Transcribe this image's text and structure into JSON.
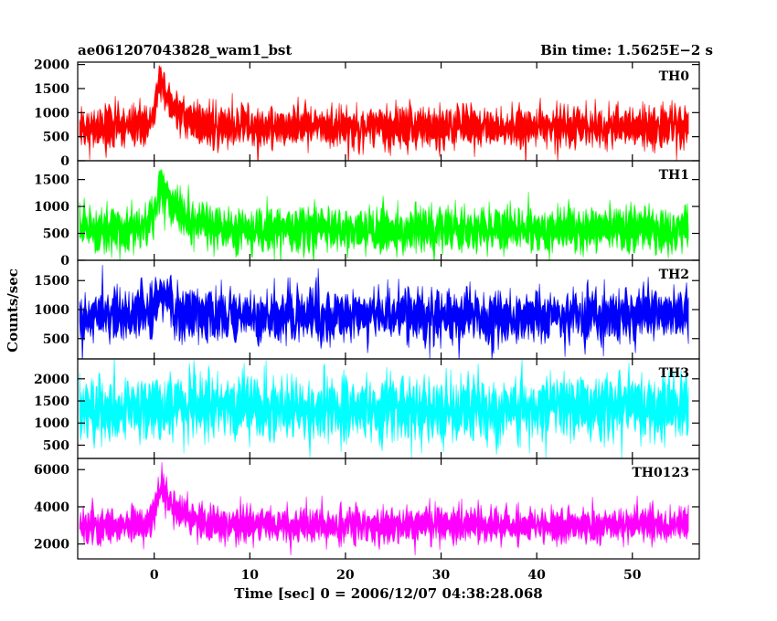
{
  "header": {
    "left_title": "ae061207043828_wam1_bst",
    "right_title": "Bin time: 1.5625E−2 s"
  },
  "chart_data": {
    "type": "line",
    "xlabel": "Time [sec] 0 = 2006/12/07 04:38:28.068",
    "ylabel": "Counts/sec",
    "xlim": [
      -8,
      57
    ],
    "x_ticks": [
      0,
      10,
      20,
      30,
      40,
      50
    ],
    "x_tick_labels": [
      "0",
      "10",
      "20",
      "30",
      "40",
      "50"
    ],
    "x_start": -7.8,
    "x_end": 55.9,
    "bin_time": 0.015625,
    "grid": false,
    "panels": [
      {
        "name": "TH0",
        "color": "#ff0000",
        "ylim": [
          0,
          2050
        ],
        "y_ticks": [
          0,
          500,
          1000,
          1500,
          2000
        ],
        "baseline_mean": 700,
        "noise_sd": 220,
        "burst": {
          "time": 0.8,
          "peak_increase": 900,
          "rise": 0.6,
          "decay": 1.8
        }
      },
      {
        "name": "TH1",
        "color": "#00ff00",
        "ylim": [
          0,
          1850
        ],
        "y_ticks": [
          0,
          500,
          1000,
          1500
        ],
        "baseline_mean": 570,
        "noise_sd": 210,
        "burst": {
          "time": 0.8,
          "peak_increase": 850,
          "rise": 0.6,
          "decay": 1.6
        }
      },
      {
        "name": "TH2",
        "color": "#0000ff",
        "ylim": [
          150,
          1850
        ],
        "y_ticks": [
          500,
          1000,
          1500
        ],
        "baseline_mean": 900,
        "noise_sd": 230,
        "burst": {
          "time": 0.8,
          "peak_increase": 300,
          "rise": 0.6,
          "decay": 1.5
        }
      },
      {
        "name": "TH3",
        "color": "#00ffff",
        "ylim": [
          200,
          2450
        ],
        "y_ticks": [
          500,
          1000,
          1500,
          2000
        ],
        "baseline_mean": 1330,
        "noise_sd": 370,
        "burst": null
      },
      {
        "name": "TH0123",
        "color": "#ff00ff",
        "ylim": [
          1200,
          6600
        ],
        "y_ticks": [
          2000,
          4000,
          6000
        ],
        "baseline_mean": 3000,
        "noise_sd": 480,
        "burst": {
          "time": 0.8,
          "peak_increase": 2100,
          "rise": 0.6,
          "decay": 1.7
        }
      }
    ]
  }
}
